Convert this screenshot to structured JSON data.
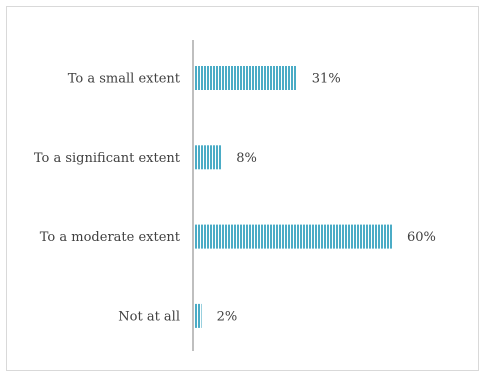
{
  "chart_data": {
    "type": "bar",
    "orientation": "horizontal",
    "title": "",
    "xlabel": "",
    "ylabel": "",
    "categories": [
      "To a small extent",
      "To a significant extent",
      "To a moderate extent",
      "Not at all"
    ],
    "values": [
      31,
      8,
      60,
      2
    ],
    "value_labels": [
      "31%",
      "8%",
      "60%",
      "2%"
    ],
    "xlim": [
      0,
      100
    ],
    "grid": false,
    "legend": "none",
    "bar_color": "#4bacc6",
    "bar_pattern": "vertical-stripes",
    "stripe_color": "#ffffff"
  }
}
